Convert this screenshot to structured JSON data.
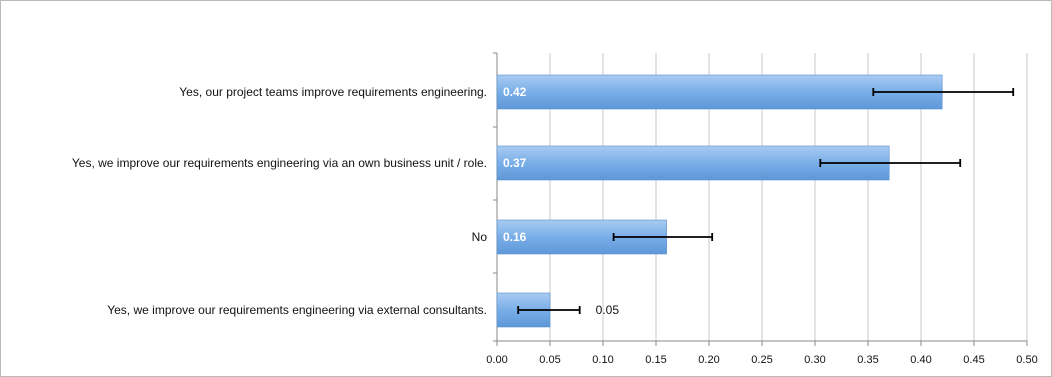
{
  "chart_data": {
    "type": "bar",
    "orientation": "horizontal",
    "categories": [
      "Yes, our project teams improve requirements engineering.",
      "Yes, we improve our requirements engineering via an own business unit / role.",
      "No",
      "Yes, we improve our requirements engineering via external consultants."
    ],
    "values": [
      0.42,
      0.37,
      0.16,
      0.05
    ],
    "value_labels": [
      "0.42",
      "0.37",
      "0.16",
      "0.05"
    ],
    "error_low": [
      0.355,
      0.305,
      0.11,
      0.02
    ],
    "error_high": [
      0.487,
      0.437,
      0.203,
      0.078
    ],
    "xlim": [
      0,
      0.5
    ],
    "xticks": [
      0,
      0.05,
      0.1,
      0.15,
      0.2,
      0.25,
      0.3,
      0.35,
      0.4,
      0.45,
      0.5
    ],
    "xtick_labels": [
      "0.00",
      "0.05",
      "0.10",
      "0.15",
      "0.20",
      "0.25",
      "0.30",
      "0.35",
      "0.40",
      "0.45",
      "0.50"
    ],
    "grid": true,
    "title": "",
    "xlabel": "",
    "ylabel": "",
    "colors": {
      "bar": "#6fa6e2",
      "bar_light": "#a9cbf2",
      "grid": "#c8c8c8",
      "axis": "#8a8a8a",
      "error": "#000000"
    }
  }
}
